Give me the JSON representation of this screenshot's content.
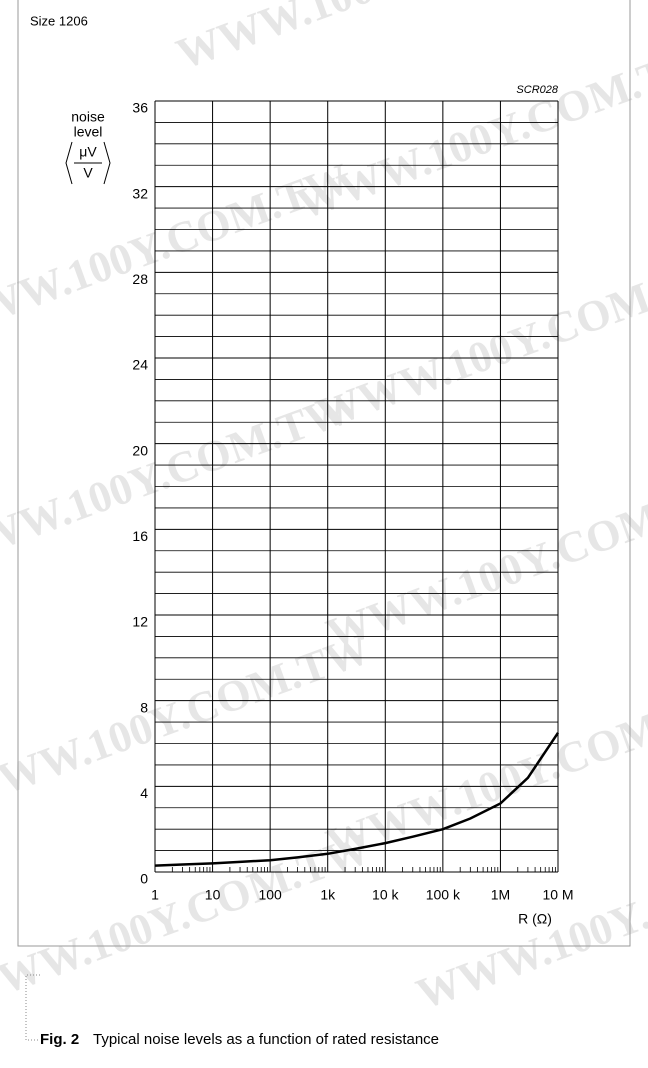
{
  "header": "Size 1206",
  "watermark": "WWW.100Y.COM.TW",
  "chart_data": {
    "type": "line",
    "log_x": true,
    "grid": true,
    "code": "SCR028",
    "ylabel": [
      "noise",
      "level"
    ],
    "yunit": {
      "num": "μV",
      "den": "V"
    },
    "xlabel": "R (Ω)",
    "x": [
      1,
      3,
      10,
      30,
      100,
      300,
      1000,
      3000,
      10000,
      30000,
      100000,
      300000,
      1000000,
      3000000,
      10000000
    ],
    "series": [
      {
        "name": "noise level",
        "color": "#000000",
        "values": [
          0.3,
          0.35,
          0.4,
          0.47,
          0.55,
          0.68,
          0.85,
          1.08,
          1.35,
          1.65,
          2.0,
          2.5,
          3.2,
          4.4,
          6.5
        ]
      }
    ],
    "xlim": [
      1,
      10000000
    ],
    "xticks": [
      1,
      10,
      100,
      {
        "value": 1000,
        "label": "1k"
      },
      {
        "value": 10000,
        "label": "10 k"
      },
      {
        "value": 100000,
        "label": "100 k"
      },
      {
        "value": 1000000,
        "label": "1M"
      },
      {
        "value": 10000000,
        "label": "10 M"
      }
    ],
    "ylim": [
      0,
      36
    ],
    "yticks": [
      0,
      4,
      8,
      12,
      16,
      20,
      24,
      28,
      32,
      36
    ],
    "yminorticks": [
      1,
      2,
      3,
      5,
      6,
      7,
      9,
      10,
      11,
      13,
      14,
      15,
      17,
      18,
      19,
      21,
      22,
      23,
      25,
      26,
      27,
      29,
      30,
      31,
      33,
      34,
      35
    ]
  },
  "caption": {
    "label": "Fig. 2",
    "text": "Typical noise levels as a function of rated resistance"
  }
}
